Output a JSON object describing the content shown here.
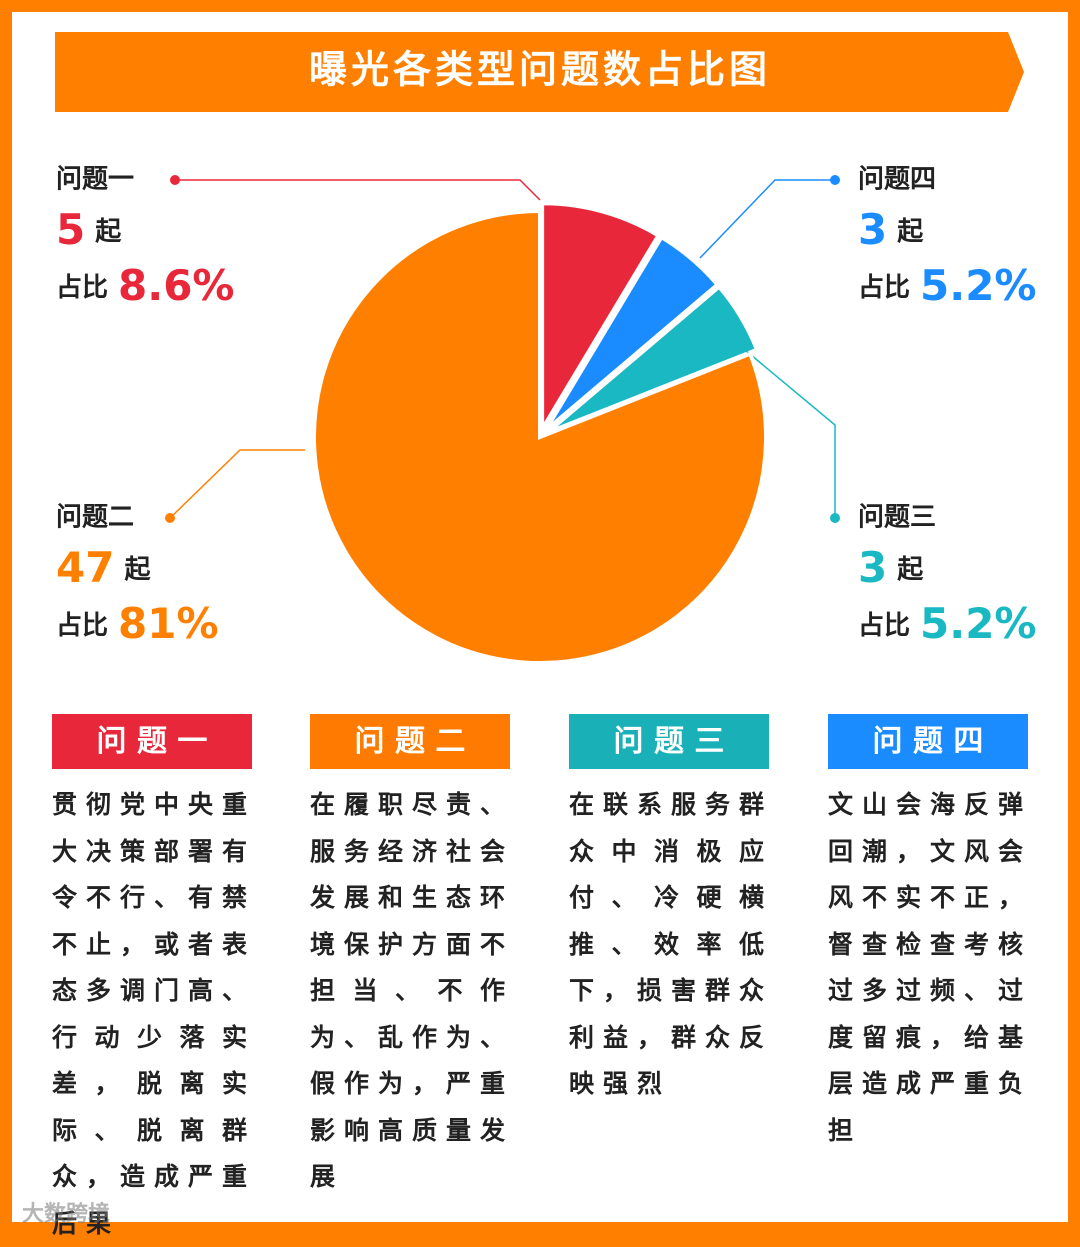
{
  "chart_data": {
    "type": "pie",
    "title": "曝光各类型问题数占比图",
    "categories": [
      "问题一",
      "问题四",
      "问题三",
      "问题二"
    ],
    "values": [
      8.6,
      5.2,
      5.2,
      81
    ],
    "value_labels": [
      "8.6%",
      "5.2%",
      "5.2%",
      "81%"
    ],
    "counts": [
      5,
      3,
      3,
      47
    ],
    "count_unit": "起",
    "share_label": "占比",
    "colors": [
      "#e8283a",
      "#1a8cff",
      "#19b8c2",
      "#ff8000"
    ]
  },
  "cards": [
    {
      "title": "问 题 一",
      "color": "#e8283a",
      "text": "贯彻党中央重大决策部署有令不行、有禁不止，或者表态多调门高、行动少落实差，脱离实际、脱离群众，造成严重后果"
    },
    {
      "title": "问 题 二",
      "color": "#ff7a00",
      "text": "在履职尽责、服务经济社会发展和生态环境保护方面不担当、不作为、乱作为、假作为，严重影响高质量发展"
    },
    {
      "title": "问 题 三",
      "color": "#19b0b8",
      "text": "在联系服务群众中消极应付、冷硬横推、效率低下，损害群众利益，群众反映强烈"
    },
    {
      "title": "问 题 四",
      "color": "#1a8cff",
      "text": "文山会海反弹回潮，文风会风不实不正，督查检查考核过多过频、过度留痕，给基层造成严重负担"
    }
  ],
  "watermark": "大数跨境"
}
